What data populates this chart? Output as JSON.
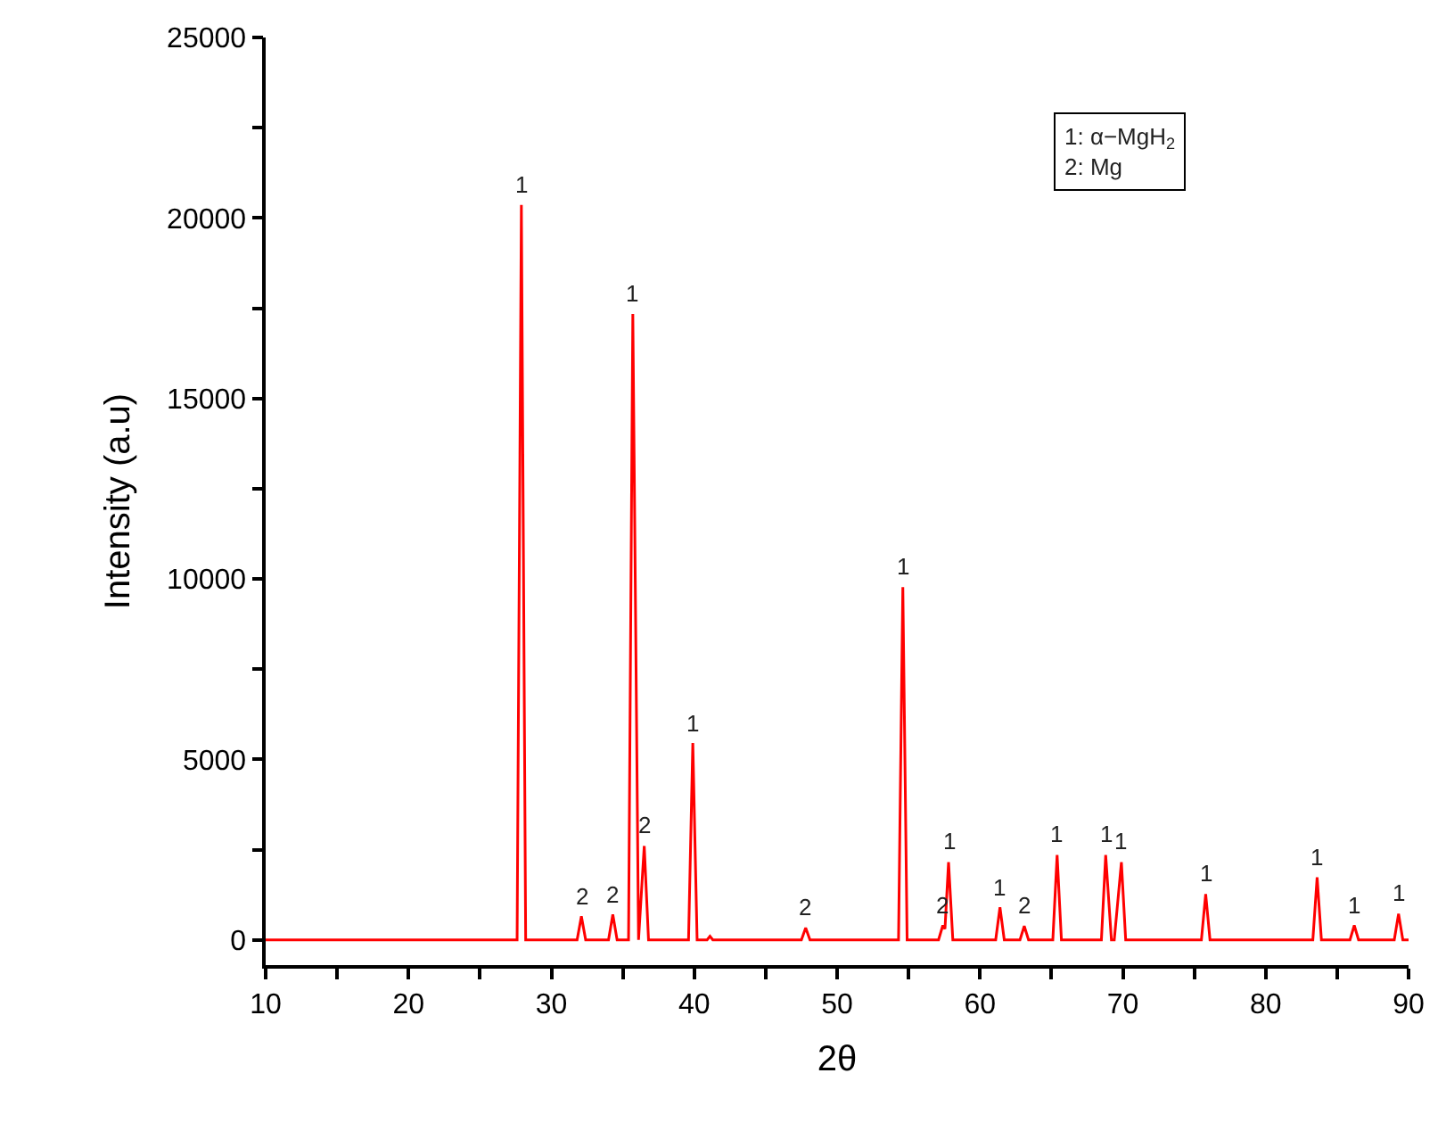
{
  "chart_data": {
    "type": "line",
    "xlabel": "2θ",
    "ylabel": "Intensity (a.u)",
    "x": [
      10,
      27.6,
      27.9,
      28.2,
      31.8,
      32.1,
      32.4,
      34.0,
      34.3,
      34.6,
      35.4,
      35.7,
      36.1,
      36.5,
      36.8,
      39.6,
      39.9,
      40.2,
      40.9,
      41.1,
      41.3,
      47.5,
      47.8,
      48.1,
      54.3,
      54.6,
      54.9,
      57.1,
      57.4,
      57.55,
      57.8,
      58.1,
      61.1,
      61.4,
      61.7,
      62.8,
      63.1,
      63.4,
      65.1,
      65.4,
      65.7,
      68.5,
      68.8,
      69.2,
      69.4,
      69.9,
      70.2,
      75.5,
      75.8,
      76.1,
      83.3,
      83.6,
      83.9,
      85.9,
      86.2,
      86.5,
      89.0,
      89.3,
      89.6,
      90
    ],
    "series": [
      {
        "color": "#ff0000",
        "values": [
          0,
          0,
          20360,
          0,
          0,
          650,
          0,
          0,
          700,
          0,
          0,
          17340,
          0,
          2600,
          0,
          0,
          5450,
          0,
          0,
          100,
          0,
          0,
          330,
          0,
          0,
          9770,
          0,
          0,
          400,
          300,
          2150,
          0,
          0,
          900,
          0,
          0,
          380,
          0,
          0,
          2350,
          0,
          0,
          2350,
          0,
          0,
          2150,
          0,
          0,
          1270,
          0,
          0,
          1730,
          0,
          0,
          400,
          0,
          0,
          720,
          0,
          0
        ]
      }
    ],
    "xlim": [
      10,
      90
    ],
    "xticks": [
      10,
      {
        "value": 15,
        "label": null
      },
      20,
      {
        "value": 25,
        "label": null
      },
      30,
      {
        "value": 35,
        "label": null
      },
      40,
      {
        "value": 45,
        "label": null
      },
      50,
      {
        "value": 55,
        "label": null
      },
      60,
      {
        "value": 65,
        "label": null
      },
      70,
      {
        "value": 75,
        "label": null
      },
      80,
      {
        "value": 85,
        "label": null
      },
      90
    ],
    "ylim": [
      -700,
      25000
    ],
    "yticks": [
      0,
      {
        "value": 2500,
        "label": null
      },
      5000,
      {
        "value": 7500,
        "label": null
      },
      10000,
      {
        "value": 12500,
        "label": null
      },
      15000,
      {
        "value": 17500,
        "label": null
      },
      20000,
      {
        "value": 22500,
        "label": null
      },
      25000
    ],
    "marker": "none",
    "line_style": "solid",
    "annotations": [
      "1: α−MgH$_{2}$",
      "2: Mg",
      {
        "text": "1",
        "x": 27.9,
        "y": 20360
      },
      {
        "text": "2",
        "x": 32.1,
        "y": 650
      },
      {
        "text": "2",
        "x": 34.3,
        "y": 700
      },
      {
        "text": "1",
        "x": 35.7,
        "y": 17340
      },
      {
        "text": "2",
        "x": 36.5,
        "y": 2600
      },
      {
        "text": "1",
        "x": 39.9,
        "y": 5450
      },
      {
        "text": "2",
        "x": 47.8,
        "y": 330
      },
      {
        "text": "1",
        "x": 54.6,
        "y": 9770
      },
      {
        "text": "2",
        "x": 57.4,
        "y": 400
      },
      {
        "text": "1",
        "x": 57.8,
        "y": 2150
      },
      {
        "text": "1",
        "x": 61.4,
        "y": 900
      },
      {
        "text": "2",
        "x": 63.1,
        "y": 380
      },
      {
        "text": "1",
        "x": 65.4,
        "y": 2350
      },
      {
        "text": "1",
        "x": 68.8,
        "y": 2350
      },
      {
        "text": "1",
        "x": 69.9,
        "y": 2150
      },
      {
        "text": "1",
        "x": 75.8,
        "y": 1270
      },
      {
        "text": "1",
        "x": 83.6,
        "y": 1730
      },
      {
        "text": "1",
        "x": 86.2,
        "y": 400
      },
      {
        "text": "1",
        "x": 89.3,
        "y": 720
      }
    ]
  }
}
